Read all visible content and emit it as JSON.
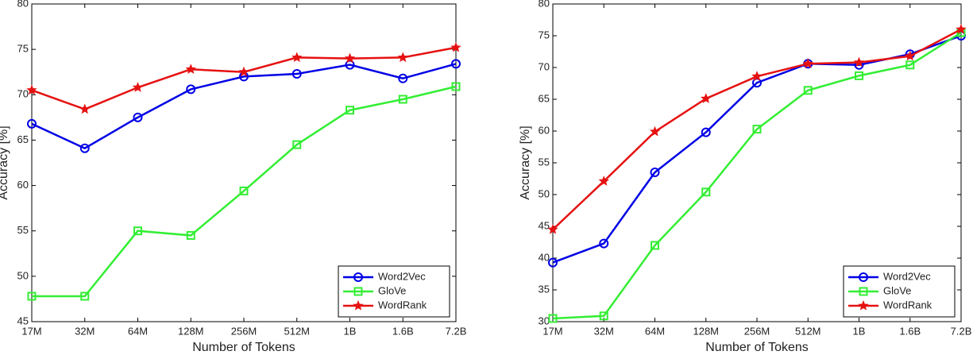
{
  "chart_data": [
    {
      "type": "line",
      "xlabel": "Number of Tokens",
      "ylabel": "Accuracy [%]",
      "categories": [
        "17M",
        "32M",
        "64M",
        "128M",
        "256M",
        "512M",
        "1B",
        "1.6B",
        "7.2B"
      ],
      "ylim": [
        45,
        80
      ],
      "yticks": [
        45,
        50,
        55,
        60,
        65,
        70,
        75,
        80
      ],
      "legend": "lower right",
      "series": [
        {
          "name": "Word2Vec",
          "color": "#0000e6",
          "marker": "circle",
          "values": [
            66.8,
            64.1,
            67.5,
            70.6,
            72.0,
            72.3,
            73.3,
            71.8,
            73.4
          ]
        },
        {
          "name": "GloVe",
          "color": "#33ee33",
          "marker": "square",
          "values": [
            47.8,
            47.8,
            55.0,
            54.5,
            59.4,
            64.5,
            68.3,
            69.5,
            70.9
          ]
        },
        {
          "name": "WordRank",
          "color": "#e61111",
          "marker": "star",
          "values": [
            70.5,
            68.4,
            70.8,
            72.8,
            72.5,
            74.1,
            74.0,
            74.1,
            75.2
          ]
        }
      ]
    },
    {
      "type": "line",
      "xlabel": "Number of Tokens",
      "ylabel": "Accuracy [%]",
      "categories": [
        "17M",
        "32M",
        "64M",
        "128M",
        "256M",
        "512M",
        "1B",
        "1.6B",
        "7.2B"
      ],
      "ylim": [
        30,
        80
      ],
      "yticks": [
        30,
        35,
        40,
        45,
        50,
        55,
        60,
        65,
        70,
        75,
        80
      ],
      "legend": "lower right",
      "series": [
        {
          "name": "Word2Vec",
          "color": "#0000e6",
          "marker": "circle",
          "values": [
            39.3,
            42.3,
            53.5,
            59.8,
            67.6,
            70.6,
            70.4,
            72.1,
            75.0
          ]
        },
        {
          "name": "GloVe",
          "color": "#33ee33",
          "marker": "square",
          "values": [
            30.5,
            30.9,
            42.0,
            50.4,
            60.3,
            66.4,
            68.7,
            70.4,
            75.5
          ]
        },
        {
          "name": "WordRank",
          "color": "#e61111",
          "marker": "star",
          "values": [
            44.5,
            52.1,
            59.9,
            65.1,
            68.6,
            70.6,
            70.8,
            71.8,
            76.0
          ]
        }
      ]
    }
  ]
}
